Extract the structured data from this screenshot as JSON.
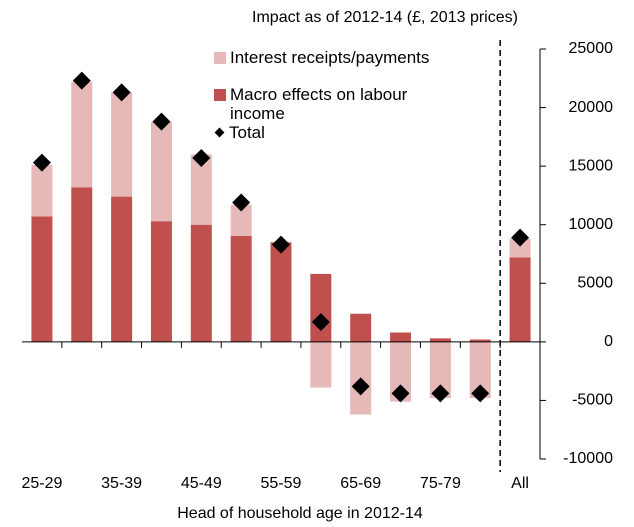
{
  "chart_data": {
    "type": "bar",
    "stacked": true,
    "title": "Impact as of 2012-14 (£, 2013 prices)",
    "x_label": "Head of household age in 2012-14",
    "categories": [
      "25-29",
      null,
      "35-39",
      null,
      "45-49",
      null,
      "55-59",
      null,
      "65-69",
      null,
      "75-79",
      null,
      "All"
    ],
    "series": [
      {
        "name": "Interest receipts/payments",
        "color": "#e6b9b8",
        "values": [
          4400,
          9000,
          8900,
          8500,
          6000,
          2650,
          0,
          -3900,
          -6200,
          -5100,
          -4800,
          -4800,
          1600
        ]
      },
      {
        "name": "Macro effects on labour income",
        "color": "#c0504d",
        "values": [
          10700,
          13200,
          12400,
          10300,
          10000,
          9050,
          8500,
          5800,
          2400,
          800,
          300,
          200,
          7200
        ]
      },
      {
        "name": "Total",
        "color": "#000000",
        "marker": "diamond",
        "values": [
          15300,
          22300,
          21300,
          18800,
          15700,
          11900,
          8300,
          1700,
          -3800,
          -4400,
          -4400,
          -4400,
          8900
        ]
      }
    ],
    "ylim": [
      -10000,
      25000
    ],
    "yticks": [
      -10000,
      -5000,
      0,
      5000,
      10000,
      15000,
      20000,
      25000
    ],
    "y_axis_side": "right"
  }
}
